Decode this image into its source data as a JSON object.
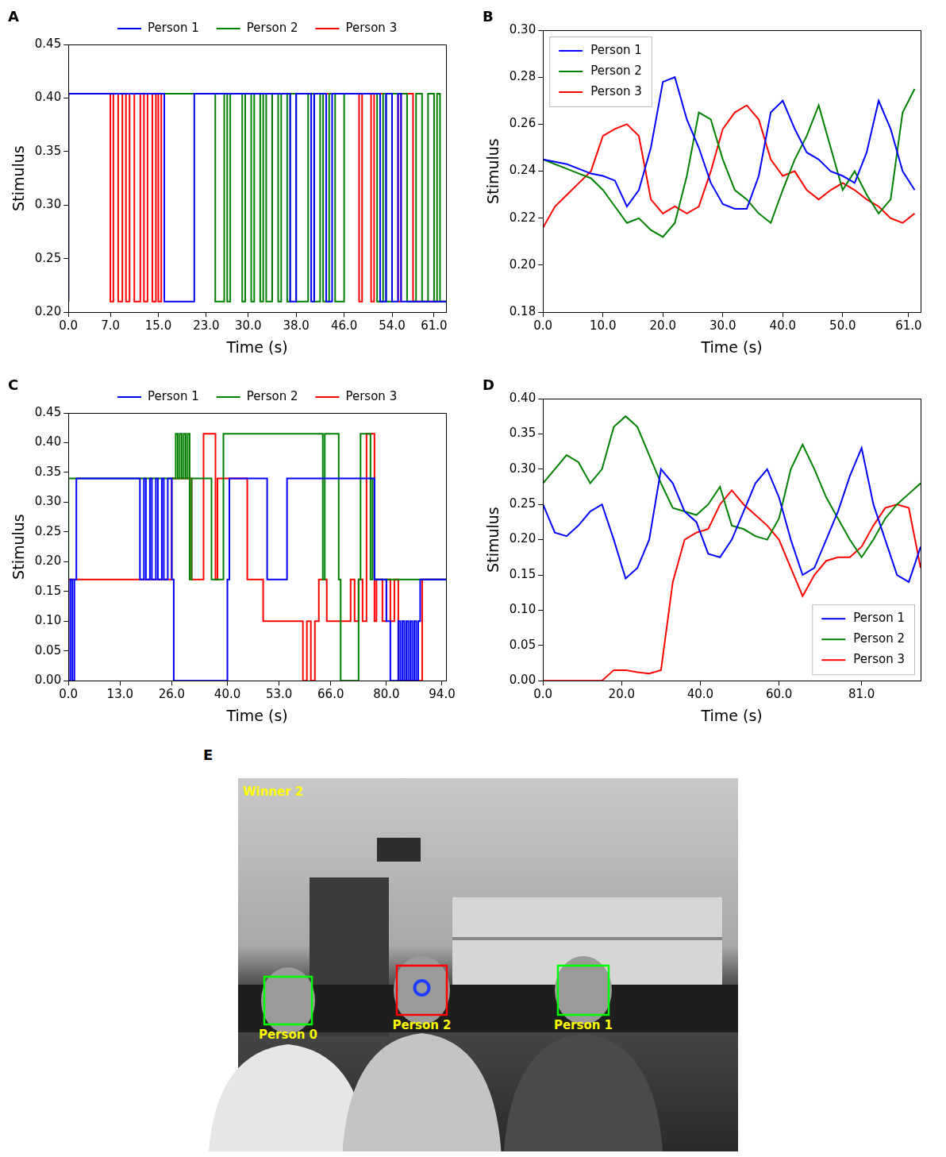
{
  "chart_data": [
    {
      "panel": "A",
      "type": "line",
      "line_style": "steps",
      "x_label": "Time (s)",
      "y_label": "Stimulus",
      "xlim": [
        0,
        63
      ],
      "xticks": [
        {
          "value": 0,
          "label": "0.0"
        },
        {
          "value": 7,
          "label": "7.0"
        },
        {
          "value": 15,
          "label": "15.0"
        },
        {
          "value": 23,
          "label": "23.0"
        },
        {
          "value": 30,
          "label": "30.0"
        },
        {
          "value": 38,
          "label": "38.0"
        },
        {
          "value": 46,
          "label": "46.0"
        },
        {
          "value": 54,
          "label": "54.0"
        },
        {
          "value": 61,
          "label": "61.0"
        }
      ],
      "ylim": [
        0.2,
        0.45
      ],
      "yticks": [
        {
          "value": 0.2,
          "label": "0.20"
        },
        0.25,
        {
          "value": 0.3,
          "label": "0.30"
        },
        0.35,
        {
          "value": 0.4,
          "label": "0.40"
        },
        0.45
      ],
      "grid": false,
      "legend": "top",
      "series": [
        {
          "name": "Person 1",
          "color": "#0000ff",
          "x": [
            0,
            16,
            21,
            37,
            38,
            40.5,
            41,
            43,
            44,
            52,
            53,
            54,
            55,
            55.5,
            56.5,
            63
          ],
          "values": [
            0.21,
            0.404,
            0.21,
            0.404,
            0.21,
            0.404,
            0.21,
            0.404,
            0.21,
            0.404,
            0.21,
            0.404,
            0.21,
            0.404,
            0.21,
            0.21
          ]
        },
        {
          "name": "Person 2",
          "color": "#008000",
          "x": [
            0,
            24.5,
            26,
            26.5,
            27,
            29,
            29.5,
            30.5,
            31,
            32,
            32.5,
            33,
            34,
            35,
            35.5,
            36.5,
            37,
            38,
            40,
            41,
            42,
            42.5,
            43.5,
            44.5,
            46,
            51.5,
            52.5,
            53,
            54,
            56.5,
            58,
            59,
            60,
            61,
            61.5,
            62,
            63
          ],
          "values": [
            0.21,
            0.404,
            0.21,
            0.404,
            0.21,
            0.404,
            0.21,
            0.404,
            0.21,
            0.404,
            0.21,
            0.404,
            0.21,
            0.404,
            0.21,
            0.404,
            0.21,
            0.404,
            0.21,
            0.404,
            0.21,
            0.404,
            0.21,
            0.404,
            0.21,
            0.404,
            0.21,
            0.404,
            0.21,
            0.404,
            0.21,
            0.404,
            0.21,
            0.404,
            0.21,
            0.404,
            0.21
          ]
        },
        {
          "name": "Person 3",
          "color": "#ff0000",
          "x": [
            0,
            7,
            7.5,
            8.3,
            9,
            9.6,
            10.2,
            11,
            12,
            12.6,
            13.2,
            14,
            14.6,
            15,
            15.5,
            48.5,
            49,
            50.5,
            51,
            55,
            55.5,
            57.5,
            58,
            63
          ],
          "values": [
            0.21,
            0.404,
            0.21,
            0.404,
            0.21,
            0.404,
            0.21,
            0.404,
            0.21,
            0.404,
            0.21,
            0.404,
            0.21,
            0.404,
            0.21,
            0.404,
            0.21,
            0.404,
            0.21,
            0.404,
            0.21,
            0.404,
            0.21,
            0.21
          ]
        }
      ]
    },
    {
      "panel": "B",
      "type": "line",
      "x_label": "Time (s)",
      "y_label": "Stimulus",
      "xlim": [
        0,
        63
      ],
      "xticks": [
        {
          "value": 0,
          "label": "0.0"
        },
        {
          "value": 10,
          "label": "10.0"
        },
        {
          "value": 20,
          "label": "20.0"
        },
        {
          "value": 30,
          "label": "30.0"
        },
        {
          "value": 40,
          "label": "40.0"
        },
        {
          "value": 50,
          "label": "50.0"
        },
        {
          "value": 61,
          "label": "61.0"
        }
      ],
      "ylim": [
        0.18,
        0.3
      ],
      "yticks": [
        0.18,
        {
          "value": 0.2,
          "label": "0.20"
        },
        0.22,
        0.24,
        0.26,
        0.28,
        {
          "value": 0.3,
          "label": "0.30"
        }
      ],
      "grid": false,
      "legend": "upper left",
      "x": [
        0,
        2,
        4,
        6,
        8,
        10,
        12,
        14,
        16,
        18,
        20,
        22,
        24,
        26,
        28,
        30,
        32,
        34,
        36,
        38,
        40,
        42,
        44,
        46,
        48,
        50,
        52,
        54,
        56,
        58,
        60,
        62
      ],
      "series": [
        {
          "name": "Person 1",
          "color": "#0000ff",
          "values": [
            0.245,
            0.244,
            0.243,
            0.241,
            0.239,
            0.238,
            0.236,
            0.225,
            0.232,
            0.25,
            0.278,
            0.28,
            0.262,
            0.25,
            0.235,
            0.226,
            0.224,
            0.224,
            0.238,
            0.265,
            0.27,
            0.258,
            0.248,
            0.245,
            0.24,
            0.238,
            0.235,
            0.248,
            0.27,
            0.258,
            0.24,
            0.232
          ]
        },
        {
          "name": "Person 2",
          "color": "#008000",
          "values": [
            0.245,
            0.243,
            0.241,
            0.239,
            0.237,
            0.232,
            0.225,
            0.218,
            0.22,
            0.215,
            0.212,
            0.218,
            0.238,
            0.265,
            0.262,
            0.245,
            0.232,
            0.228,
            0.222,
            0.218,
            0.232,
            0.245,
            0.255,
            0.268,
            0.25,
            0.232,
            0.24,
            0.23,
            0.222,
            0.228,
            0.265,
            0.275
          ]
        },
        {
          "name": "Person 3",
          "color": "#ff0000",
          "values": [
            0.216,
            0.225,
            0.23,
            0.235,
            0.24,
            0.255,
            0.258,
            0.26,
            0.255,
            0.228,
            0.222,
            0.225,
            0.222,
            0.225,
            0.24,
            0.258,
            0.265,
            0.268,
            0.262,
            0.245,
            0.238,
            0.24,
            0.232,
            0.228,
            0.232,
            0.235,
            0.232,
            0.228,
            0.225,
            0.22,
            0.218,
            0.222
          ]
        }
      ]
    },
    {
      "panel": "C",
      "type": "line",
      "line_style": "steps",
      "x_label": "Time (s)",
      "y_label": "Stimulus",
      "xlim": [
        0,
        95
      ],
      "xticks": [
        {
          "value": 0,
          "label": "0.0"
        },
        {
          "value": 13,
          "label": "13.0"
        },
        {
          "value": 26,
          "label": "26.0"
        },
        {
          "value": 40,
          "label": "40.0"
        },
        {
          "value": 53,
          "label": "53.0"
        },
        {
          "value": 66,
          "label": "66.0"
        },
        {
          "value": 80,
          "label": "80.0"
        },
        {
          "value": 94,
          "label": "94.0"
        }
      ],
      "ylim": [
        0,
        0.45
      ],
      "yticks": [
        {
          "value": 0,
          "label": "0.00"
        },
        0.05,
        {
          "value": 0.1,
          "label": "0.10"
        },
        0.15,
        {
          "value": 0.2,
          "label": "0.20"
        },
        0.25,
        {
          "value": 0.3,
          "label": "0.30"
        },
        0.35,
        {
          "value": 0.4,
          "label": "0.40"
        },
        0.45
      ],
      "grid": false,
      "legend": "top",
      "series": [
        {
          "name": "Person 1",
          "color": "#0000ff",
          "x": [
            0,
            0.5,
            1,
            1.5,
            2,
            18,
            19,
            19.5,
            20.5,
            21,
            22,
            22.5,
            23.5,
            24,
            25,
            26,
            26.5,
            40,
            40.5,
            50,
            55,
            77,
            80,
            81,
            83,
            83.5,
            84,
            84.5,
            85,
            85.5,
            86,
            86.5,
            87,
            87.5,
            88,
            88.5,
            90,
            95
          ],
          "values": [
            0.17,
            0,
            0.17,
            0,
            0.17,
            0.34,
            0.17,
            0.34,
            0.17,
            0.34,
            0.17,
            0.34,
            0.17,
            0.34,
            0.17,
            0.34,
            0.17,
            0,
            0.17,
            0.34,
            0.17,
            0.34,
            0.17,
            0.1,
            0,
            0.1,
            0,
            0.1,
            0,
            0.1,
            0,
            0.1,
            0,
            0.1,
            0,
            0.1,
            0.17,
            0.17
          ]
        },
        {
          "name": "Person 2",
          "color": "#008000",
          "x": [
            0,
            27,
            27.5,
            28,
            28.5,
            29,
            29.5,
            30,
            30.5,
            31,
            36,
            39,
            64,
            64.5,
            68,
            68.5,
            73,
            73.5,
            76,
            76.5,
            77,
            79,
            95
          ],
          "values": [
            0.17,
            0.34,
            0.415,
            0.34,
            0.415,
            0.34,
            0.415,
            0.34,
            0.415,
            0.17,
            0.34,
            0.17,
            0.415,
            0.17,
            0.415,
            0.17,
            0,
            0.17,
            0.415,
            0.17,
            0.34,
            0.17,
            0.17
          ]
        },
        {
          "name": "Person 3",
          "color": "#ff0000",
          "x": [
            0,
            26,
            31,
            34,
            37,
            37.5,
            45,
            49,
            59,
            60,
            61,
            62,
            63,
            65,
            71,
            72,
            73,
            74,
            75,
            77,
            77.5,
            79,
            80,
            81,
            82,
            83,
            89,
            93,
            95
          ],
          "values": [
            0,
            0.17,
            0.34,
            0.17,
            0.415,
            0.17,
            0.34,
            0.17,
            0.1,
            0,
            0.1,
            0,
            0.1,
            0.17,
            0.1,
            0.17,
            0.1,
            0.17,
            0.1,
            0.415,
            0.1,
            0.17,
            0.1,
            0.17,
            0.1,
            0.17,
            0,
            0.17,
            0.17
          ]
        }
      ]
    },
    {
      "panel": "D",
      "type": "line",
      "x_label": "Time (s)",
      "y_label": "Stimulus",
      "xlim": [
        0,
        96
      ],
      "xticks": [
        {
          "value": 0,
          "label": "0.0"
        },
        {
          "value": 20,
          "label": "20.0"
        },
        {
          "value": 40,
          "label": "40.0"
        },
        {
          "value": 60,
          "label": "60.0"
        },
        {
          "value": 81,
          "label": "81.0"
        }
      ],
      "ylim": [
        0,
        0.4
      ],
      "yticks": [
        {
          "value": 0,
          "label": "0.00"
        },
        0.05,
        {
          "value": 0.1,
          "label": "0.10"
        },
        0.15,
        {
          "value": 0.2,
          "label": "0.20"
        },
        0.25,
        {
          "value": 0.3,
          "label": "0.30"
        },
        0.35,
        {
          "value": 0.4,
          "label": "0.40"
        }
      ],
      "grid": false,
      "legend": "lower right",
      "x": [
        0,
        3,
        6,
        9,
        12,
        15,
        18,
        21,
        24,
        27,
        30,
        33,
        36,
        39,
        42,
        45,
        48,
        51,
        54,
        57,
        60,
        63,
        66,
        69,
        72,
        75,
        78,
        81,
        84,
        87,
        90,
        93,
        96
      ],
      "series": [
        {
          "name": "Person 1",
          "color": "#0000ff",
          "values": [
            0.25,
            0.21,
            0.205,
            0.22,
            0.24,
            0.25,
            0.2,
            0.145,
            0.16,
            0.2,
            0.3,
            0.28,
            0.24,
            0.225,
            0.18,
            0.175,
            0.2,
            0.24,
            0.28,
            0.3,
            0.26,
            0.2,
            0.15,
            0.16,
            0.2,
            0.24,
            0.29,
            0.33,
            0.25,
            0.2,
            0.15,
            0.14,
            0.19
          ]
        },
        {
          "name": "Person 2",
          "color": "#008000",
          "values": [
            0.28,
            0.3,
            0.32,
            0.31,
            0.28,
            0.3,
            0.36,
            0.375,
            0.36,
            0.32,
            0.28,
            0.245,
            0.24,
            0.235,
            0.25,
            0.275,
            0.22,
            0.215,
            0.205,
            0.2,
            0.23,
            0.3,
            0.335,
            0.3,
            0.26,
            0.23,
            0.2,
            0.175,
            0.2,
            0.23,
            0.25,
            0.265,
            0.28
          ]
        },
        {
          "name": "Person 3",
          "color": "#ff0000",
          "values": [
            0,
            0,
            0,
            0,
            0,
            0,
            0.015,
            0.015,
            0.012,
            0.01,
            0.015,
            0.14,
            0.2,
            0.21,
            0.215,
            0.25,
            0.27,
            0.25,
            0.235,
            0.22,
            0.2,
            0.16,
            0.12,
            0.15,
            0.17,
            0.175,
            0.175,
            0.19,
            0.22,
            0.245,
            0.25,
            0.245,
            0.16
          ]
        }
      ]
    }
  ],
  "image": {
    "panel": "E",
    "caption": "Winner 2",
    "faces": [
      {
        "label": "Person 0",
        "color": "#00ff00"
      },
      {
        "label": "Person 2",
        "color": "#ff0000",
        "marker": "circle"
      },
      {
        "label": "Person 1",
        "color": "#00ff00"
      }
    ]
  }
}
